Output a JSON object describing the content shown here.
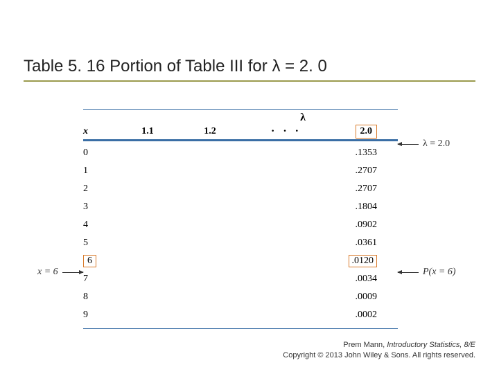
{
  "title": "Table 5. 16 Portion of Table III for λ = 2. 0",
  "lambda_symbol": "λ",
  "col_headers": {
    "x": "x",
    "c1": "1.1",
    "c2": "1.2",
    "dots": "· · ·",
    "c_last": "2.0"
  },
  "rows": [
    {
      "x": "0",
      "v": ".1353",
      "hl": false
    },
    {
      "x": "1",
      "v": ".2707",
      "hl": false
    },
    {
      "x": "2",
      "v": ".2707",
      "hl": false
    },
    {
      "x": "3",
      "v": ".1804",
      "hl": false
    },
    {
      "x": "4",
      "v": ".0902",
      "hl": false
    },
    {
      "x": "5",
      "v": ".0361",
      "hl": false
    },
    {
      "x": "6",
      "v": ".0120",
      "hl": true
    },
    {
      "x": "7",
      "v": ".0034",
      "hl": false
    },
    {
      "x": "8",
      "v": ".0009",
      "hl": false
    },
    {
      "x": "9",
      "v": ".0002",
      "hl": false
    }
  ],
  "annotations": {
    "lambda_eq": "λ = 2.0",
    "x_eq": "x = 6",
    "p_eq": "P(x = 6)"
  },
  "footer": {
    "author": "Prem Mann, ",
    "book": "Introductory Statistics, 8/E",
    "copyright": "Copyright © 2013 John Wiley & Sons. All rights reserved."
  },
  "colors": {
    "title_underline": "#9a9a4d",
    "table_rule": "#3a6ea5",
    "highlight_box": "#d97b2b"
  }
}
